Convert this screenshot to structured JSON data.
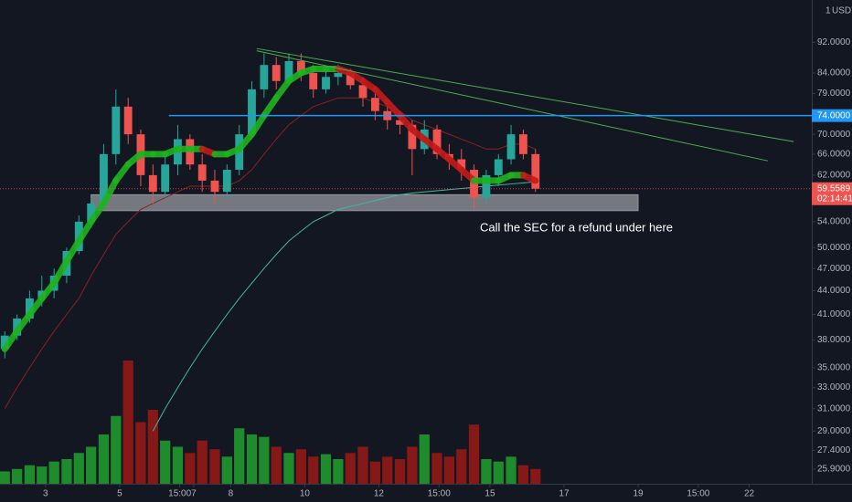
{
  "chart_data": {
    "type": "candlestick",
    "log_scale": true,
    "grid": false,
    "currency": "USDT",
    "multiplier": "1",
    "x": [
      1.9,
      2.23,
      2.57,
      2.9,
      3.23,
      3.57,
      3.9,
      4.23,
      4.57,
      4.9,
      5.23,
      5.57,
      5.9,
      6.23,
      6.57,
      6.9,
      7.23,
      7.57,
      7.9,
      8.23,
      8.57,
      8.9,
      9.23,
      9.57,
      9.9,
      10.23,
      10.57,
      10.9,
      11.23,
      11.57,
      11.9,
      12.23,
      12.57,
      12.9,
      13.23,
      13.57,
      13.9,
      14.23,
      14.57,
      14.9,
      15.23,
      15.57,
      15.9,
      16.23
    ],
    "open": [
      37,
      38.5,
      40.5,
      43,
      44,
      46,
      49.5,
      54,
      57,
      66,
      76,
      70,
      62,
      59,
      64,
      69,
      64,
      61,
      59,
      63,
      70,
      80,
      86,
      82,
      87,
      84,
      80,
      83,
      84,
      81,
      78,
      75,
      73,
      72,
      67,
      71,
      66,
      65,
      63,
      58,
      62,
      65,
      70,
      66
    ],
    "high": [
      39,
      41,
      44,
      46,
      47,
      50,
      55,
      58,
      68,
      80,
      78,
      71,
      64,
      66,
      72,
      70,
      66,
      63,
      64,
      72,
      82,
      89,
      88,
      89,
      89,
      86,
      85,
      86,
      85,
      83,
      79,
      76,
      75,
      73,
      73,
      72,
      68,
      67,
      64,
      63,
      66,
      72,
      71,
      67
    ],
    "low": [
      36,
      38,
      40,
      42,
      43,
      45,
      49,
      53,
      56,
      64,
      68,
      60,
      57,
      58,
      62,
      63,
      59,
      57,
      58,
      62,
      69,
      78,
      80,
      81,
      82,
      78,
      79,
      81,
      80,
      76,
      73,
      71,
      70,
      62,
      66,
      65,
      63,
      61,
      56,
      57,
      60,
      64,
      65,
      59
    ],
    "close": [
      38.5,
      40.5,
      43,
      44,
      46,
      49.5,
      54,
      57,
      66,
      76,
      70,
      62,
      59,
      64,
      69,
      64,
      61,
      59,
      63,
      70,
      80,
      86,
      82,
      87,
      84,
      80,
      83,
      84,
      81,
      78,
      75,
      73,
      72,
      67,
      71,
      66,
      65,
      63,
      58,
      62,
      65,
      70,
      66,
      59.5589
    ],
    "volume": [
      10,
      12,
      15,
      14,
      18,
      20,
      25,
      30,
      40,
      55,
      100,
      50,
      60,
      35,
      30,
      25,
      35,
      28,
      22,
      45,
      40,
      38,
      30,
      25,
      28,
      22,
      24,
      20,
      25,
      30,
      18,
      22,
      20,
      30,
      40,
      25,
      22,
      28,
      48,
      20,
      18,
      22,
      15,
      12
    ],
    "volume_lim": [
      0,
      100
    ],
    "up_color": "#26a69a",
    "down_color": "#ef5350",
    "volume_up_color": "#1e8c2c",
    "volume_down_color": "#861818",
    "moving_averages": [
      {
        "color": "#8b2020",
        "width": 1,
        "values": [
          31,
          33,
          35,
          37,
          39,
          41,
          43,
          46,
          49,
          52,
          54,
          56,
          57,
          58,
          59,
          60,
          60,
          60,
          60,
          61,
          63,
          66,
          69,
          72,
          74,
          76,
          77,
          78,
          78,
          78,
          77,
          76,
          75,
          73,
          72,
          71,
          70,
          69,
          68,
          67,
          67,
          68,
          68,
          67
        ]
      },
      {
        "color": "#3fb8a0",
        "width": 1,
        "values": [
          null,
          null,
          null,
          null,
          null,
          null,
          null,
          null,
          null,
          null,
          null,
          null,
          29,
          31,
          33,
          35,
          37,
          39,
          41,
          43,
          45,
          47,
          49,
          51,
          52.5,
          54,
          55,
          56,
          56.5,
          57,
          57.5,
          58,
          58.5,
          58.8,
          59,
          59.2,
          59.4,
          59.6,
          59.8,
          60,
          60.2,
          60.4,
          60.6,
          60.8
        ]
      },
      {
        "rising_color": "#1fb31f",
        "falling_color": "#c41a1a",
        "width": 7,
        "values": [
          37,
          39,
          41,
          43,
          45,
          48,
          51,
          54,
          57,
          61,
          64,
          66,
          66,
          66,
          67,
          67,
          67,
          66,
          66,
          67,
          70,
          74,
          78,
          82,
          84,
          85,
          85,
          85,
          84,
          82,
          80,
          77,
          74,
          71,
          69,
          67,
          65,
          63,
          61,
          61,
          61,
          62,
          62,
          61
        ]
      }
    ],
    "trendlines": [
      {
        "color": "#4caf50",
        "x": [
          8.7,
          23.2
        ],
        "y": [
          90.3,
          68.5
        ]
      },
      {
        "color": "#4caf50",
        "x": [
          8.7,
          22.5
        ],
        "y": [
          89.7,
          64.7
        ]
      }
    ],
    "hline": {
      "value": 74,
      "label": "74.0000",
      "x_start": 6.33,
      "color": "#2196f3"
    },
    "zone": {
      "x": [
        4.23,
        19
      ],
      "y": [
        55.8,
        58.5
      ]
    },
    "last_price": {
      "value": 59.5589,
      "countdown": "02:14:41"
    },
    "annotation": "Call the SEC for a refund under here",
    "ylim": [
      24.8,
      104.3
    ],
    "yticks": [
      {
        "value": 92,
        "label": "92.0000"
      },
      {
        "value": 84,
        "label": "84.0000"
      },
      {
        "value": 79,
        "label": "79.0000"
      },
      {
        "value": 70,
        "label": "70.0000"
      },
      {
        "value": 66,
        "label": "66.0000"
      },
      {
        "value": 62,
        "label": "62.0000"
      },
      {
        "value": 54,
        "label": "54.0000"
      },
      {
        "value": 50,
        "label": "50.0000"
      },
      {
        "value": 47,
        "label": "47.0000"
      },
      {
        "value": 44,
        "label": "44.0000"
      },
      {
        "value": 41,
        "label": "41.0000"
      },
      {
        "value": 38,
        "label": "38.0000"
      },
      {
        "value": 35,
        "label": "35.0000"
      },
      {
        "value": 33,
        "label": "33.0000"
      },
      {
        "value": 31,
        "label": "31.0000"
      },
      {
        "value": 29,
        "label": "29.0000"
      },
      {
        "value": 27.4,
        "label": "27.4000"
      },
      {
        "value": 25.9,
        "label": "25.9000"
      }
    ],
    "xlim": [
      1.77,
      23.69
    ],
    "xticks": [
      3,
      5,
      {
        "value": 6.625,
        "label": "15:00"
      },
      7,
      8,
      10,
      12,
      {
        "value": 13.625,
        "label": "15:00"
      },
      15,
      17,
      19,
      {
        "value": 20.625,
        "label": "15:00"
      },
      22
    ]
  }
}
